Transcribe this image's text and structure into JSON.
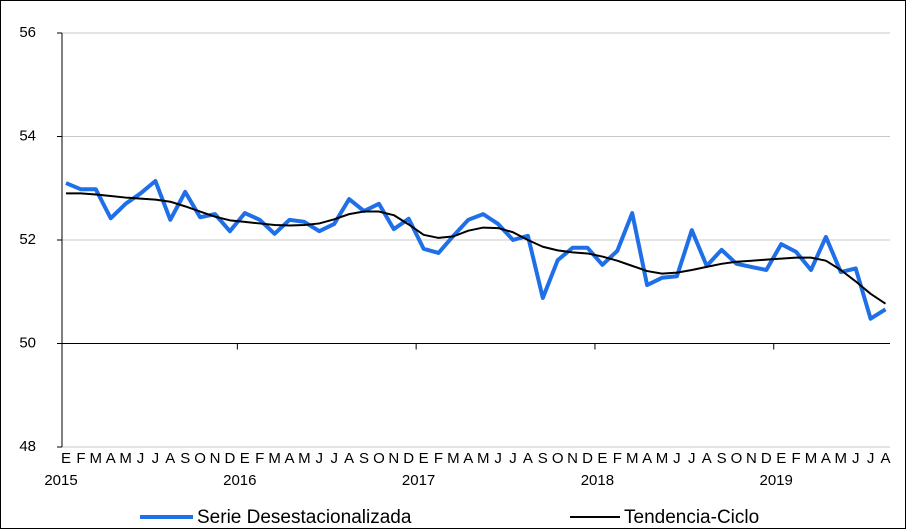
{
  "chart_data": {
    "type": "line",
    "categories": [
      "E",
      "F",
      "M",
      "A",
      "M",
      "J",
      "J",
      "A",
      "S",
      "O",
      "N",
      "D",
      "E",
      "F",
      "M",
      "A",
      "M",
      "J",
      "J",
      "A",
      "S",
      "O",
      "N",
      "D",
      "E",
      "F",
      "M",
      "A",
      "M",
      "J",
      "J",
      "A",
      "S",
      "O",
      "N",
      "D",
      "E",
      "F",
      "M",
      "A",
      "M",
      "J",
      "J",
      "A",
      "S",
      "O",
      "N",
      "D",
      "E",
      "F",
      "M",
      "A",
      "M",
      "J",
      "J",
      "A"
    ],
    "years": [
      "2015",
      "2016",
      "2017",
      "2018",
      "2019"
    ],
    "series": [
      {
        "name": "Serie Desestacionalizada",
        "color": "#1f6fe8",
        "values": [
          53.1,
          52.98,
          52.98,
          52.42,
          52.7,
          52.9,
          53.14,
          52.39,
          52.93,
          52.44,
          52.5,
          52.17,
          52.52,
          52.39,
          52.12,
          52.39,
          52.35,
          52.17,
          52.31,
          52.79,
          52.56,
          52.7,
          52.21,
          52.41,
          51.83,
          51.75,
          52.08,
          52.39,
          52.5,
          52.31,
          52.0,
          52.08,
          50.88,
          51.61,
          51.85,
          51.85,
          51.52,
          51.79,
          52.52,
          51.13,
          51.27,
          51.3,
          52.19,
          51.5,
          51.81,
          51.54,
          51.48,
          51.42,
          51.92,
          51.77,
          51.42,
          52.06,
          51.38,
          51.45,
          50.48,
          50.66
        ]
      },
      {
        "name": "Tendencia-Ciclo",
        "color": "#000000",
        "values": [
          52.9,
          52.9,
          52.88,
          52.85,
          52.82,
          52.8,
          52.78,
          52.74,
          52.65,
          52.55,
          52.45,
          52.38,
          52.35,
          52.32,
          52.29,
          52.28,
          52.29,
          52.32,
          52.4,
          52.5,
          52.55,
          52.55,
          52.48,
          52.3,
          52.1,
          52.04,
          52.07,
          52.18,
          52.24,
          52.23,
          52.15,
          52.0,
          51.87,
          51.8,
          51.76,
          51.74,
          51.68,
          51.6,
          51.5,
          51.4,
          51.35,
          51.37,
          51.42,
          51.48,
          51.54,
          51.58,
          51.6,
          51.62,
          51.64,
          51.66,
          51.66,
          51.6,
          51.42,
          51.2,
          50.96,
          50.77
        ]
      }
    ],
    "ylim": [
      48,
      56
    ],
    "yticks": [
      48,
      50,
      52,
      54,
      56
    ],
    "x_axis_at": 50,
    "grid": true,
    "legend": "bottom"
  }
}
